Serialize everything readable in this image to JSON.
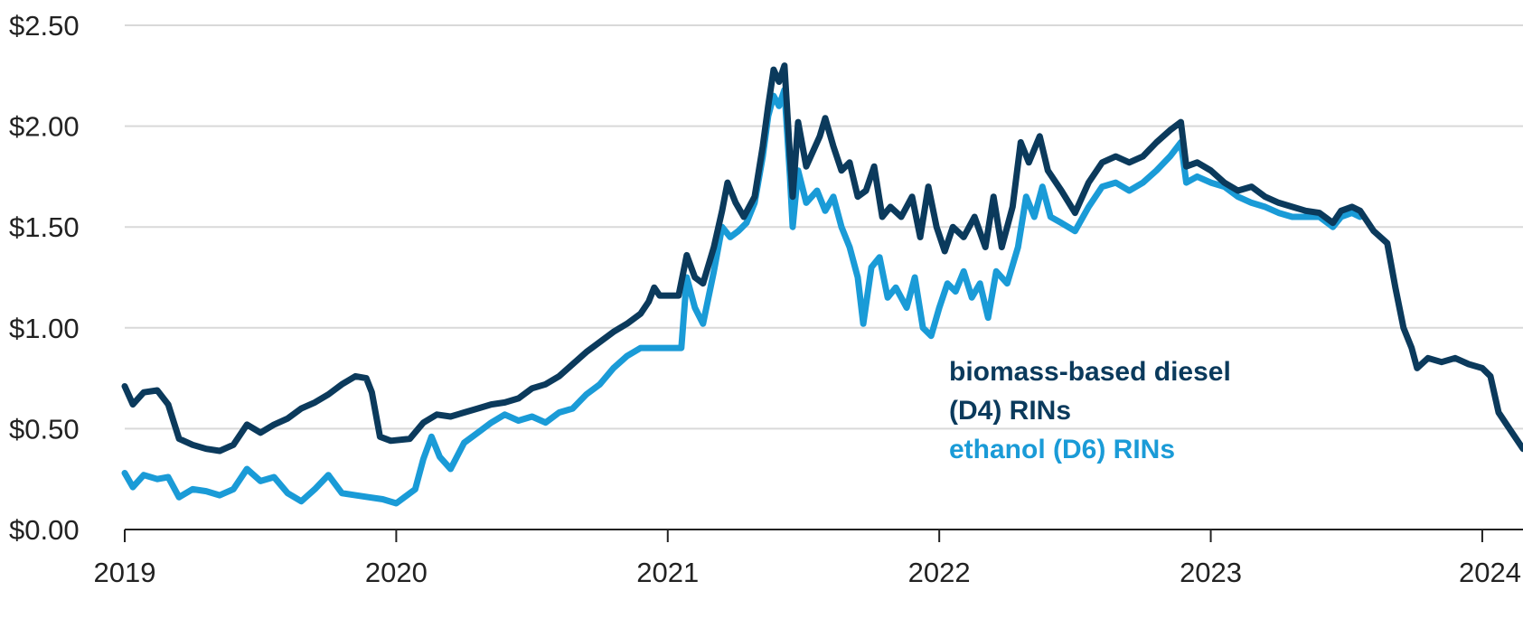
{
  "chart_data": {
    "type": "line",
    "title": "",
    "xlabel": "",
    "ylabel": "",
    "xlim": [
      2019.0,
      2024.15
    ],
    "ylim": [
      0,
      2.5
    ],
    "grid": true,
    "x_ticks": [
      {
        "value": 2019,
        "label": "2019"
      },
      {
        "value": 2020,
        "label": "2020"
      },
      {
        "value": 2021,
        "label": "2021"
      },
      {
        "value": 2022,
        "label": "2022"
      },
      {
        "value": 2023,
        "label": "2023"
      },
      {
        "value": 2024,
        "label": "2024"
      }
    ],
    "y_ticks": [
      {
        "value": 0,
        "label": "$0.00"
      },
      {
        "value": 0.5,
        "label": "$0.50"
      },
      {
        "value": 1.0,
        "label": "$1.00"
      },
      {
        "value": 1.5,
        "label": "$1.50"
      },
      {
        "value": 2.0,
        "label": "$2.00"
      },
      {
        "value": 2.5,
        "label": "$2.50"
      }
    ],
    "legend_placement": "lower-right, inline",
    "series": [
      {
        "name": "biomass-based diesel (D4) RINs",
        "legend_lines": [
          "biomass-based diesel",
          "(D4) RINs"
        ],
        "color": "#0b3a5c",
        "points": [
          [
            2019.0,
            0.71
          ],
          [
            2019.03,
            0.62
          ],
          [
            2019.07,
            0.68
          ],
          [
            2019.12,
            0.69
          ],
          [
            2019.16,
            0.62
          ],
          [
            2019.2,
            0.45
          ],
          [
            2019.25,
            0.42
          ],
          [
            2019.3,
            0.4
          ],
          [
            2019.35,
            0.39
          ],
          [
            2019.4,
            0.42
          ],
          [
            2019.45,
            0.52
          ],
          [
            2019.5,
            0.48
          ],
          [
            2019.55,
            0.52
          ],
          [
            2019.6,
            0.55
          ],
          [
            2019.65,
            0.6
          ],
          [
            2019.7,
            0.63
          ],
          [
            2019.75,
            0.67
          ],
          [
            2019.8,
            0.72
          ],
          [
            2019.85,
            0.76
          ],
          [
            2019.89,
            0.75
          ],
          [
            2019.91,
            0.68
          ],
          [
            2019.94,
            0.46
          ],
          [
            2019.98,
            0.44
          ],
          [
            2020.05,
            0.45
          ],
          [
            2020.1,
            0.53
          ],
          [
            2020.15,
            0.57
          ],
          [
            2020.2,
            0.56
          ],
          [
            2020.25,
            0.58
          ],
          [
            2020.3,
            0.6
          ],
          [
            2020.35,
            0.62
          ],
          [
            2020.4,
            0.63
          ],
          [
            2020.45,
            0.65
          ],
          [
            2020.5,
            0.7
          ],
          [
            2020.55,
            0.72
          ],
          [
            2020.6,
            0.76
          ],
          [
            2020.65,
            0.82
          ],
          [
            2020.7,
            0.88
          ],
          [
            2020.75,
            0.93
          ],
          [
            2020.8,
            0.98
          ],
          [
            2020.85,
            1.02
          ],
          [
            2020.9,
            1.07
          ],
          [
            2020.93,
            1.13
          ],
          [
            2020.95,
            1.2
          ],
          [
            2020.97,
            1.16
          ],
          [
            2021.0,
            1.16
          ],
          [
            2021.04,
            1.16
          ],
          [
            2021.07,
            1.36
          ],
          [
            2021.1,
            1.25
          ],
          [
            2021.13,
            1.22
          ],
          [
            2021.17,
            1.4
          ],
          [
            2021.2,
            1.58
          ],
          [
            2021.22,
            1.72
          ],
          [
            2021.25,
            1.62
          ],
          [
            2021.28,
            1.55
          ],
          [
            2021.3,
            1.6
          ],
          [
            2021.32,
            1.65
          ],
          [
            2021.35,
            1.9
          ],
          [
            2021.37,
            2.1
          ],
          [
            2021.39,
            2.28
          ],
          [
            2021.41,
            2.22
          ],
          [
            2021.43,
            2.3
          ],
          [
            2021.45,
            1.85
          ],
          [
            2021.46,
            1.65
          ],
          [
            2021.48,
            2.02
          ],
          [
            2021.51,
            1.8
          ],
          [
            2021.53,
            1.86
          ],
          [
            2021.56,
            1.95
          ],
          [
            2021.58,
            2.04
          ],
          [
            2021.61,
            1.9
          ],
          [
            2021.64,
            1.78
          ],
          [
            2021.67,
            1.82
          ],
          [
            2021.7,
            1.65
          ],
          [
            2021.73,
            1.68
          ],
          [
            2021.76,
            1.8
          ],
          [
            2021.79,
            1.55
          ],
          [
            2021.82,
            1.6
          ],
          [
            2021.86,
            1.55
          ],
          [
            2021.9,
            1.65
          ],
          [
            2021.93,
            1.45
          ],
          [
            2021.96,
            1.7
          ],
          [
            2021.99,
            1.5
          ],
          [
            2022.02,
            1.38
          ],
          [
            2022.05,
            1.5
          ],
          [
            2022.09,
            1.45
          ],
          [
            2022.13,
            1.55
          ],
          [
            2022.17,
            1.4
          ],
          [
            2022.2,
            1.65
          ],
          [
            2022.23,
            1.4
          ],
          [
            2022.27,
            1.6
          ],
          [
            2022.3,
            1.92
          ],
          [
            2022.33,
            1.82
          ],
          [
            2022.37,
            1.95
          ],
          [
            2022.4,
            1.78
          ],
          [
            2022.45,
            1.68
          ],
          [
            2022.5,
            1.57
          ],
          [
            2022.55,
            1.72
          ],
          [
            2022.6,
            1.82
          ],
          [
            2022.65,
            1.85
          ],
          [
            2022.7,
            1.82
          ],
          [
            2022.75,
            1.85
          ],
          [
            2022.8,
            1.92
          ],
          [
            2022.85,
            1.98
          ],
          [
            2022.89,
            2.02
          ],
          [
            2022.91,
            1.8
          ],
          [
            2022.95,
            1.82
          ],
          [
            2023.0,
            1.78
          ],
          [
            2023.05,
            1.72
          ],
          [
            2023.1,
            1.68
          ],
          [
            2023.15,
            1.7
          ],
          [
            2023.2,
            1.65
          ],
          [
            2023.25,
            1.62
          ],
          [
            2023.3,
            1.6
          ],
          [
            2023.35,
            1.58
          ],
          [
            2023.4,
            1.57
          ],
          [
            2023.45,
            1.52
          ],
          [
            2023.48,
            1.58
          ],
          [
            2023.52,
            1.6
          ],
          [
            2023.55,
            1.58
          ],
          [
            2023.6,
            1.48
          ],
          [
            2023.65,
            1.42
          ],
          [
            2023.68,
            1.2
          ],
          [
            2023.71,
            1.0
          ],
          [
            2023.74,
            0.9
          ],
          [
            2023.76,
            0.8
          ],
          [
            2023.8,
            0.85
          ],
          [
            2023.85,
            0.83
          ],
          [
            2023.9,
            0.85
          ],
          [
            2023.95,
            0.82
          ],
          [
            2024.0,
            0.8
          ],
          [
            2024.03,
            0.76
          ],
          [
            2024.06,
            0.58
          ],
          [
            2024.1,
            0.5
          ],
          [
            2024.13,
            0.44
          ],
          [
            2024.15,
            0.4
          ]
        ]
      },
      {
        "name": "ethanol (D6) RINs",
        "legend_lines": [
          "ethanol (D6) RINs"
        ],
        "color": "#1a9bd7",
        "points": [
          [
            2019.0,
            0.28
          ],
          [
            2019.03,
            0.21
          ],
          [
            2019.07,
            0.27
          ],
          [
            2019.12,
            0.25
          ],
          [
            2019.16,
            0.26
          ],
          [
            2019.2,
            0.16
          ],
          [
            2019.25,
            0.2
          ],
          [
            2019.3,
            0.19
          ],
          [
            2019.35,
            0.17
          ],
          [
            2019.4,
            0.2
          ],
          [
            2019.45,
            0.3
          ],
          [
            2019.5,
            0.24
          ],
          [
            2019.55,
            0.26
          ],
          [
            2019.6,
            0.18
          ],
          [
            2019.65,
            0.14
          ],
          [
            2019.7,
            0.2
          ],
          [
            2019.75,
            0.27
          ],
          [
            2019.8,
            0.18
          ],
          [
            2019.85,
            0.17
          ],
          [
            2019.9,
            0.16
          ],
          [
            2019.95,
            0.15
          ],
          [
            2020.0,
            0.13
          ],
          [
            2020.03,
            0.16
          ],
          [
            2020.07,
            0.2
          ],
          [
            2020.1,
            0.35
          ],
          [
            2020.13,
            0.46
          ],
          [
            2020.16,
            0.36
          ],
          [
            2020.2,
            0.3
          ],
          [
            2020.25,
            0.43
          ],
          [
            2020.3,
            0.48
          ],
          [
            2020.35,
            0.53
          ],
          [
            2020.4,
            0.57
          ],
          [
            2020.45,
            0.54
          ],
          [
            2020.5,
            0.56
          ],
          [
            2020.55,
            0.53
          ],
          [
            2020.6,
            0.58
          ],
          [
            2020.65,
            0.6
          ],
          [
            2020.7,
            0.67
          ],
          [
            2020.75,
            0.72
          ],
          [
            2020.8,
            0.8
          ],
          [
            2020.85,
            0.86
          ],
          [
            2020.9,
            0.9
          ],
          [
            2020.95,
            0.9
          ],
          [
            2021.0,
            0.9
          ],
          [
            2021.05,
            0.9
          ],
          [
            2021.07,
            1.25
          ],
          [
            2021.1,
            1.1
          ],
          [
            2021.13,
            1.02
          ],
          [
            2021.17,
            1.28
          ],
          [
            2021.2,
            1.5
          ],
          [
            2021.23,
            1.45
          ],
          [
            2021.26,
            1.48
          ],
          [
            2021.29,
            1.52
          ],
          [
            2021.32,
            1.62
          ],
          [
            2021.35,
            1.85
          ],
          [
            2021.37,
            2.05
          ],
          [
            2021.39,
            2.15
          ],
          [
            2021.41,
            2.1
          ],
          [
            2021.43,
            2.18
          ],
          [
            2021.45,
            1.75
          ],
          [
            2021.46,
            1.5
          ],
          [
            2021.48,
            1.78
          ],
          [
            2021.51,
            1.62
          ],
          [
            2021.55,
            1.68
          ],
          [
            2021.58,
            1.58
          ],
          [
            2021.61,
            1.65
          ],
          [
            2021.64,
            1.5
          ],
          [
            2021.67,
            1.4
          ],
          [
            2021.7,
            1.25
          ],
          [
            2021.72,
            1.02
          ],
          [
            2021.75,
            1.3
          ],
          [
            2021.78,
            1.35
          ],
          [
            2021.81,
            1.15
          ],
          [
            2021.84,
            1.2
          ],
          [
            2021.88,
            1.1
          ],
          [
            2021.91,
            1.25
          ],
          [
            2021.94,
            1.0
          ],
          [
            2021.97,
            0.96
          ],
          [
            2022.0,
            1.1
          ],
          [
            2022.03,
            1.22
          ],
          [
            2022.06,
            1.18
          ],
          [
            2022.09,
            1.28
          ],
          [
            2022.12,
            1.15
          ],
          [
            2022.15,
            1.22
          ],
          [
            2022.18,
            1.05
          ],
          [
            2022.21,
            1.28
          ],
          [
            2022.25,
            1.22
          ],
          [
            2022.29,
            1.4
          ],
          [
            2022.32,
            1.65
          ],
          [
            2022.35,
            1.55
          ],
          [
            2022.38,
            1.7
          ],
          [
            2022.41,
            1.55
          ],
          [
            2022.45,
            1.52
          ],
          [
            2022.5,
            1.48
          ],
          [
            2022.55,
            1.6
          ],
          [
            2022.6,
            1.7
          ],
          [
            2022.65,
            1.72
          ],
          [
            2022.7,
            1.68
          ],
          [
            2022.75,
            1.72
          ],
          [
            2022.8,
            1.78
          ],
          [
            2022.85,
            1.85
          ],
          [
            2022.89,
            1.92
          ],
          [
            2022.91,
            1.72
          ],
          [
            2022.95,
            1.75
          ],
          [
            2023.0,
            1.72
          ],
          [
            2023.05,
            1.7
          ],
          [
            2023.1,
            1.65
          ],
          [
            2023.15,
            1.62
          ],
          [
            2023.2,
            1.6
          ],
          [
            2023.25,
            1.57
          ],
          [
            2023.3,
            1.55
          ],
          [
            2023.35,
            1.55
          ],
          [
            2023.4,
            1.55
          ],
          [
            2023.45,
            1.5
          ],
          [
            2023.48,
            1.55
          ],
          [
            2023.52,
            1.57
          ],
          [
            2023.55,
            1.55
          ]
        ]
      }
    ]
  }
}
